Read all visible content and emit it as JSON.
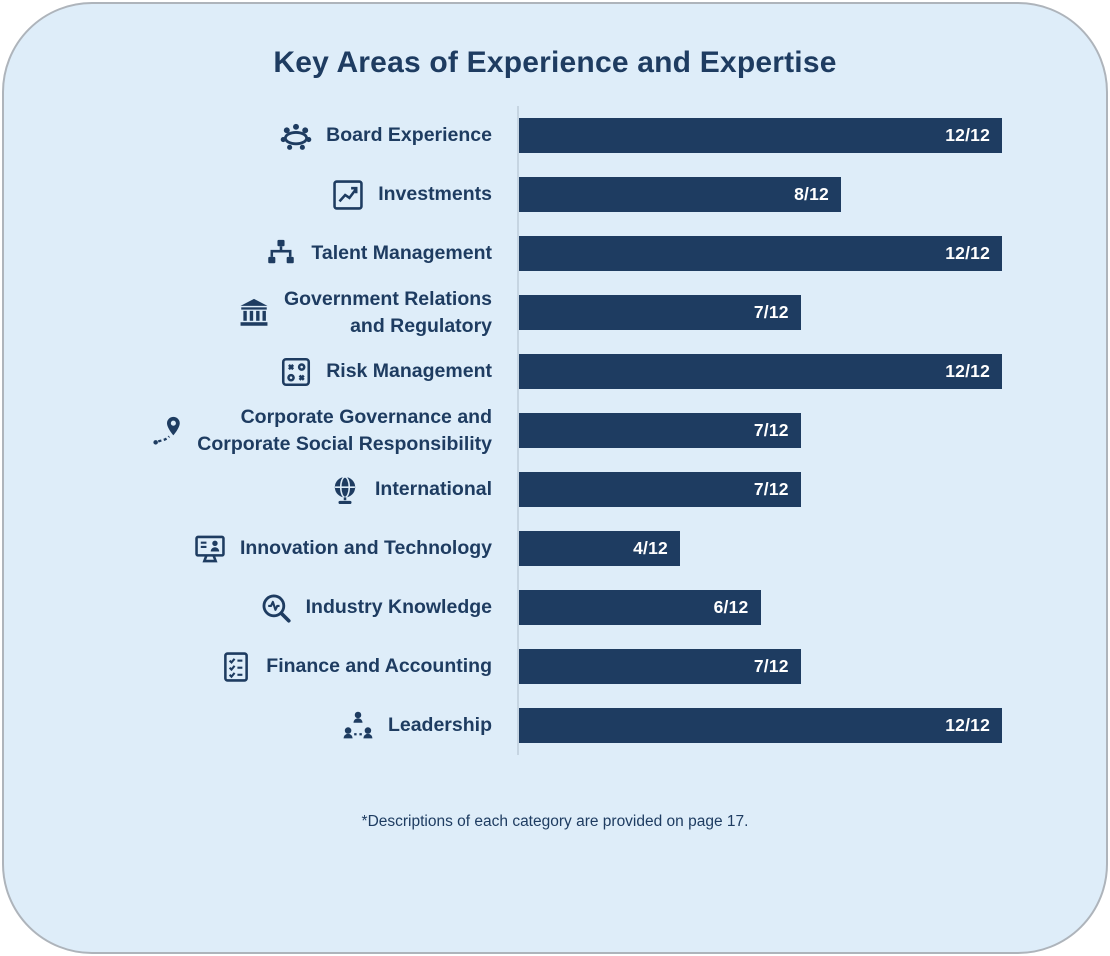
{
  "title": "Key Areas of Experience and Expertise",
  "footnote": "*Descriptions of each category are provided on page 17.",
  "colors": {
    "bar": "#1E3C61",
    "card_background": "#DEEDF9",
    "title_text": "#1E3C61",
    "label_text": "#1E3C61",
    "value_text": "#FFFFFF",
    "axis_line": "#C6D5E2"
  },
  "chart_data": {
    "type": "bar",
    "orientation": "horizontal",
    "title": "Key Areas of Experience and Expertise",
    "xlim": [
      0,
      12
    ],
    "max_value": 12,
    "grid": false,
    "legend": "none",
    "categories": [
      "Board Experience",
      "Investments",
      "Talent Management",
      "Government Relations and Regulatory",
      "Risk Management",
      "Corporate Governance and Corporate Social Responsibility",
      "International",
      "Innovation and Technology",
      "Industry Knowledge",
      "Finance and Accounting",
      "Leadership"
    ],
    "display_labels": [
      "Board Experience",
      "Investments",
      "Talent Management",
      "Government Relations\nand Regulatory",
      "Risk Management",
      "Corporate Governance and\nCorporate Social Responsibility",
      "International",
      "Innovation and Technology",
      "Industry Knowledge",
      "Finance and Accounting",
      "Leadership"
    ],
    "values": [
      12,
      8,
      12,
      7,
      12,
      7,
      7,
      4,
      6,
      7,
      12
    ],
    "value_labels": [
      "12/12",
      "8/12",
      "12/12",
      "7/12",
      "12/12",
      "7/12",
      "7/12",
      "4/12",
      "6/12",
      "7/12",
      "12/12"
    ],
    "icons": [
      "meeting-table",
      "investment-chart",
      "org-chart",
      "government-building",
      "risk-strategy",
      "route-pin",
      "globe",
      "monitor-person",
      "magnifier-pulse",
      "checklist",
      "leadership-tree"
    ]
  }
}
